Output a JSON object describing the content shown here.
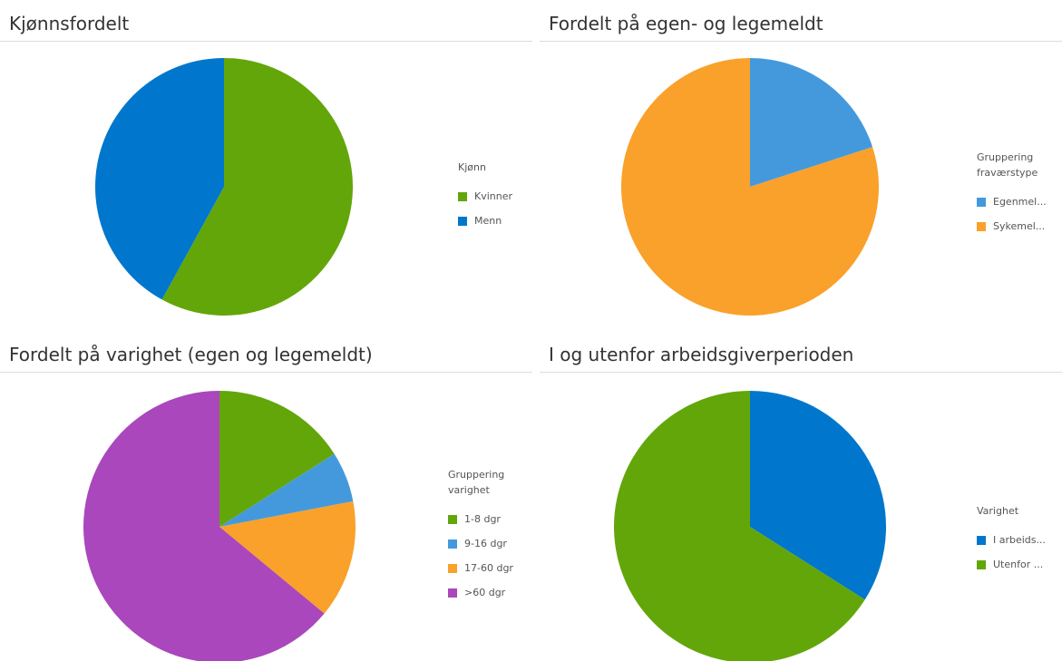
{
  "chart_data": [
    {
      "type": "pie",
      "title": "Kjønnsfordelt",
      "legend_title": "Kjønn",
      "categories": [
        "Kvinner",
        "Menn"
      ],
      "values": [
        58,
        42
      ],
      "colors": [
        "#63a60a",
        "#0077cc"
      ]
    },
    {
      "type": "pie",
      "title": "Fordelt på egen- og legemeldt",
      "legend_title": "Gruppering fraværstype",
      "categories": [
        "Egenmel...",
        "Sykemel..."
      ],
      "values": [
        20,
        80
      ],
      "colors": [
        "#4499dd",
        "#f9a12a"
      ]
    },
    {
      "type": "pie",
      "title": "Fordelt på varighet (egen og legemeldt)",
      "legend_title": "Gruppering varighet",
      "categories": [
        "1-8 dgr",
        "9-16 dgr",
        "17-60 dgr",
        ">60 dgr"
      ],
      "values": [
        16,
        6,
        14,
        64
      ],
      "colors": [
        "#63a60a",
        "#4499dd",
        "#f9a12a",
        "#aa47bc"
      ]
    },
    {
      "type": "pie",
      "title": "I og utenfor arbeidsgiverperioden",
      "legend_title": "Varighet",
      "categories": [
        "I arbeids...",
        "Utenfor ..."
      ],
      "values": [
        34,
        66
      ],
      "colors": [
        "#0077cc",
        "#63a60a"
      ]
    }
  ]
}
